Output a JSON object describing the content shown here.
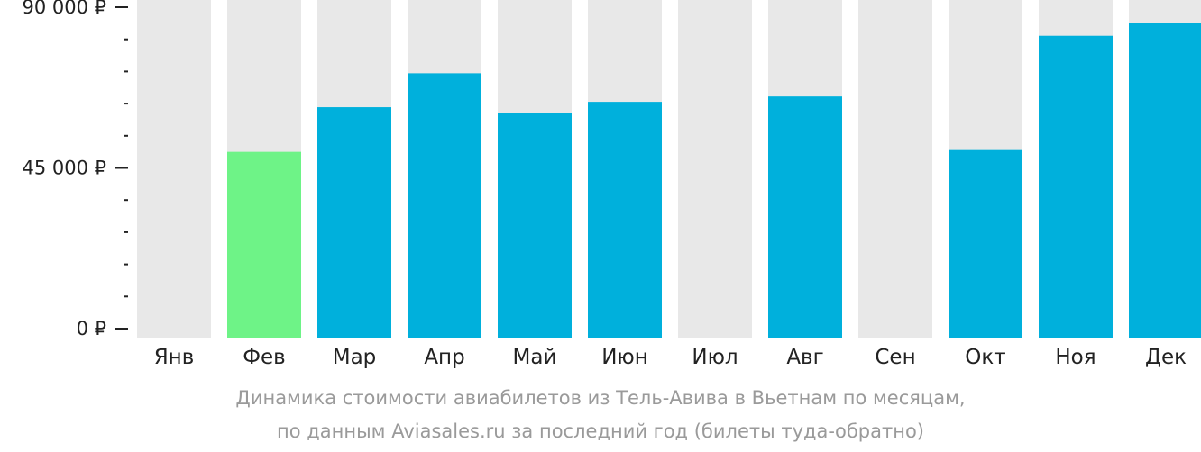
{
  "chart_data": {
    "type": "bar",
    "categories": [
      "Янв",
      "Фев",
      "Мар",
      "Апр",
      "Май",
      "Июн",
      "Июл",
      "Авг",
      "Сен",
      "Окт",
      "Ноя",
      "Дек"
    ],
    "values": [
      null,
      49500,
      62000,
      71500,
      60500,
      63500,
      null,
      65000,
      null,
      50000,
      82000,
      85500
    ],
    "highlight_index": 1,
    "ylim": [
      0,
      90000
    ],
    "yticks": [
      {
        "value": 90000,
        "label": "90 000 ₽"
      },
      {
        "value": 45000,
        "label": "45 000 ₽"
      },
      {
        "value": 0,
        "label": "0 ₽"
      }
    ],
    "minor_ticks": [
      9000,
      18000,
      27000,
      36000,
      54000,
      63000,
      72000,
      81000
    ],
    "title": "",
    "xlabel": "",
    "ylabel": "",
    "grid": false,
    "colors": {
      "bar": "#00b0dc",
      "highlight": "#6ef387",
      "background_column": "#e8e8e8",
      "axis": "#222222"
    }
  },
  "caption": {
    "line1": "Динамика стоимости авиабилетов из Тель-Авива в Вьетнам по месяцам,",
    "line2": "по данным Aviasales.ru за последний год (билеты туда-обратно)"
  }
}
